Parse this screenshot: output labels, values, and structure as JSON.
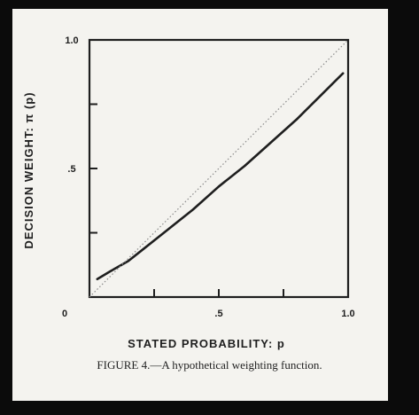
{
  "caption": "FIGURE 4.—A hypothetical weighting function.",
  "chart_data": {
    "type": "line",
    "title": "",
    "xlabel": "STATED PROBABILITY: p",
    "ylabel": "DECISION WEIGHT: π (p)",
    "xlim": [
      0,
      1
    ],
    "ylim": [
      0,
      1
    ],
    "x_ticks": [
      {
        "value": 0,
        "label": "0"
      },
      {
        "value": 0.5,
        "label": ".5"
      },
      {
        "value": 1,
        "label": "1.0"
      }
    ],
    "x_minor_ticks": [
      0.25,
      0.75
    ],
    "y_ticks": [
      {
        "value": 0.5,
        "label": ".5"
      },
      {
        "value": 1,
        "label": "1.0"
      }
    ],
    "y_minor_ticks": [
      0.25,
      0.75
    ],
    "grid": false,
    "series": [
      {
        "style": "solid",
        "color": "#1e1e1e",
        "x": [
          0.03,
          0.08,
          0.15,
          0.2,
          0.3,
          0.4,
          0.5,
          0.6,
          0.7,
          0.8,
          0.9,
          0.98
        ],
        "y": [
          0.07,
          0.1,
          0.14,
          0.18,
          0.26,
          0.34,
          0.43,
          0.51,
          0.6,
          0.69,
          0.79,
          0.87
        ]
      },
      {
        "style": "dotted",
        "color": "#8a8a8a",
        "x": [
          0,
          1
        ],
        "y": [
          0,
          1
        ]
      }
    ]
  }
}
